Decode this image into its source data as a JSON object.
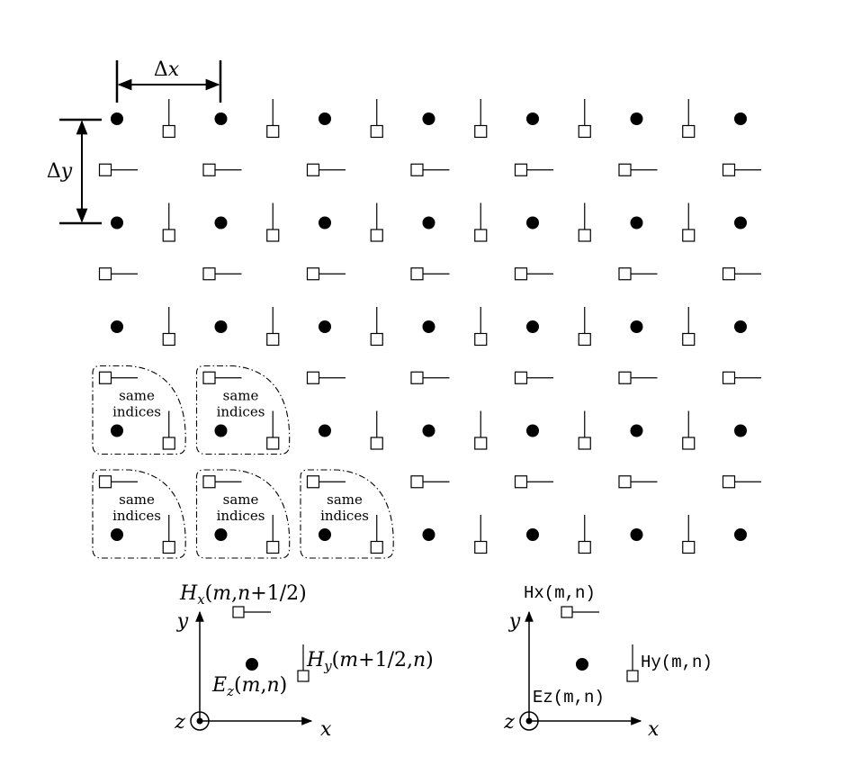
{
  "dimensions": {
    "dx_label_sym": "Δ",
    "dx_label_var": "x",
    "dy_label_sym": "Δ",
    "dy_label_var": "y"
  },
  "grid": {
    "columns": 7,
    "rows": 5
  },
  "regions": {
    "label_line1": "same",
    "label_line2": "indices",
    "cells": [
      [
        0,
        0
      ],
      [
        1,
        0
      ],
      [
        0,
        1
      ],
      [
        1,
        1
      ],
      [
        2,
        1
      ]
    ]
  },
  "legend_math": {
    "hx": {
      "H": "H",
      "sub": "x",
      "args_open": "(",
      "m": "m",
      "comma": ",",
      "n": "n",
      "tail": "+1/2)"
    },
    "hy": {
      "H": "H",
      "sub": "y",
      "args_open": "(",
      "m": "m",
      "tail1": "+1/2,",
      "n": "n",
      "close": ")"
    },
    "ez": {
      "E": "E",
      "sub": "z",
      "args_open": "(",
      "m": "m",
      "comma": ",",
      "n": "n",
      "close": ")"
    },
    "axis_x": "x",
    "axis_y": "y",
    "axis_z": "z"
  },
  "legend_code": {
    "hx": "Hx(m,n)",
    "hy": "Hy(m,n)",
    "ez": "Ez(m,n)",
    "axis_x": "x",
    "axis_y": "y",
    "axis_z": "z"
  },
  "colors": {
    "ink": "#000000",
    "paper": "#ffffff"
  }
}
